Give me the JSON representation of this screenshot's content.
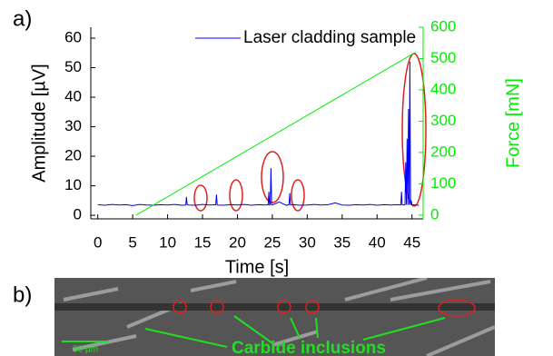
{
  "chart_data": {
    "type": "line",
    "xlabel": "Time [s]",
    "ylabel": "Amplitude [µV]",
    "y2label": "Force [mN]",
    "xlim": [
      -1,
      46.6
    ],
    "xticks": [
      0,
      5,
      10,
      15,
      20,
      25,
      30,
      35,
      40,
      45
    ],
    "ylim": [
      -1.2,
      63.7
    ],
    "yticks": [
      0,
      10,
      20,
      30,
      40,
      50,
      60
    ],
    "y2lim": [
      -12,
      600
    ],
    "y2ticks": [
      0,
      100,
      200,
      300,
      400,
      500,
      600
    ],
    "legend": "top",
    "series": [
      {
        "name": "Laser cladding sample",
        "color": "#0000ff",
        "x": [
          0,
          1,
          2,
          3,
          4,
          5,
          6,
          7,
          8,
          9,
          10,
          11,
          12,
          12.6,
          12.7,
          12.8,
          13,
          14,
          15,
          16,
          16.9,
          17,
          17.1,
          18,
          19,
          20,
          21,
          22,
          23,
          24,
          24.4,
          24.5,
          24.6,
          24.7,
          24.8,
          24.9,
          25,
          26,
          27,
          27.4,
          27.5,
          27.6,
          28,
          29,
          30,
          31,
          32,
          33,
          34,
          35,
          36,
          37,
          38,
          39,
          40,
          41,
          42,
          43,
          43.4,
          43.5,
          43.6,
          44,
          44.1,
          44.2,
          44.3,
          44.4,
          44.5,
          44.6,
          44.7,
          44.8,
          44.9,
          45,
          45.5,
          46
        ],
        "values": [
          3.6,
          3.4,
          3.7,
          3.5,
          3.6,
          3.3,
          3.7,
          3.5,
          3.4,
          3.6,
          3.5,
          3.7,
          3.4,
          3.5,
          6.2,
          3.6,
          3.5,
          3.4,
          3.7,
          3.5,
          3.6,
          7,
          3.5,
          3.4,
          3.6,
          3.5,
          3.7,
          3.4,
          3.6,
          3.5,
          3.6,
          8,
          3.5,
          3.7,
          16,
          3.6,
          3.5,
          4.5,
          3.4,
          3.6,
          7.5,
          3.5,
          3.6,
          3.4,
          3.5,
          3.7,
          3.5,
          3.6,
          4.2,
          3.5,
          3.4,
          3.6,
          3.5,
          3.7,
          3.4,
          3.6,
          3.5,
          3.6,
          3.5,
          8,
          3.6,
          3.5,
          18,
          3.6,
          26,
          3.5,
          36,
          3.6,
          52,
          3.5,
          5,
          3.6,
          3.5,
          3.4
        ]
      },
      {
        "color": "#00ee00",
        "axis": "y2",
        "x": [
          5.5,
          45.5
        ],
        "values": [
          0,
          520
        ]
      }
    ]
  },
  "panel_a_label": "a)",
  "micrograph": {
    "label": "b)",
    "annotation": "Carbide inclusions",
    "scale_bar": "50 µm"
  }
}
